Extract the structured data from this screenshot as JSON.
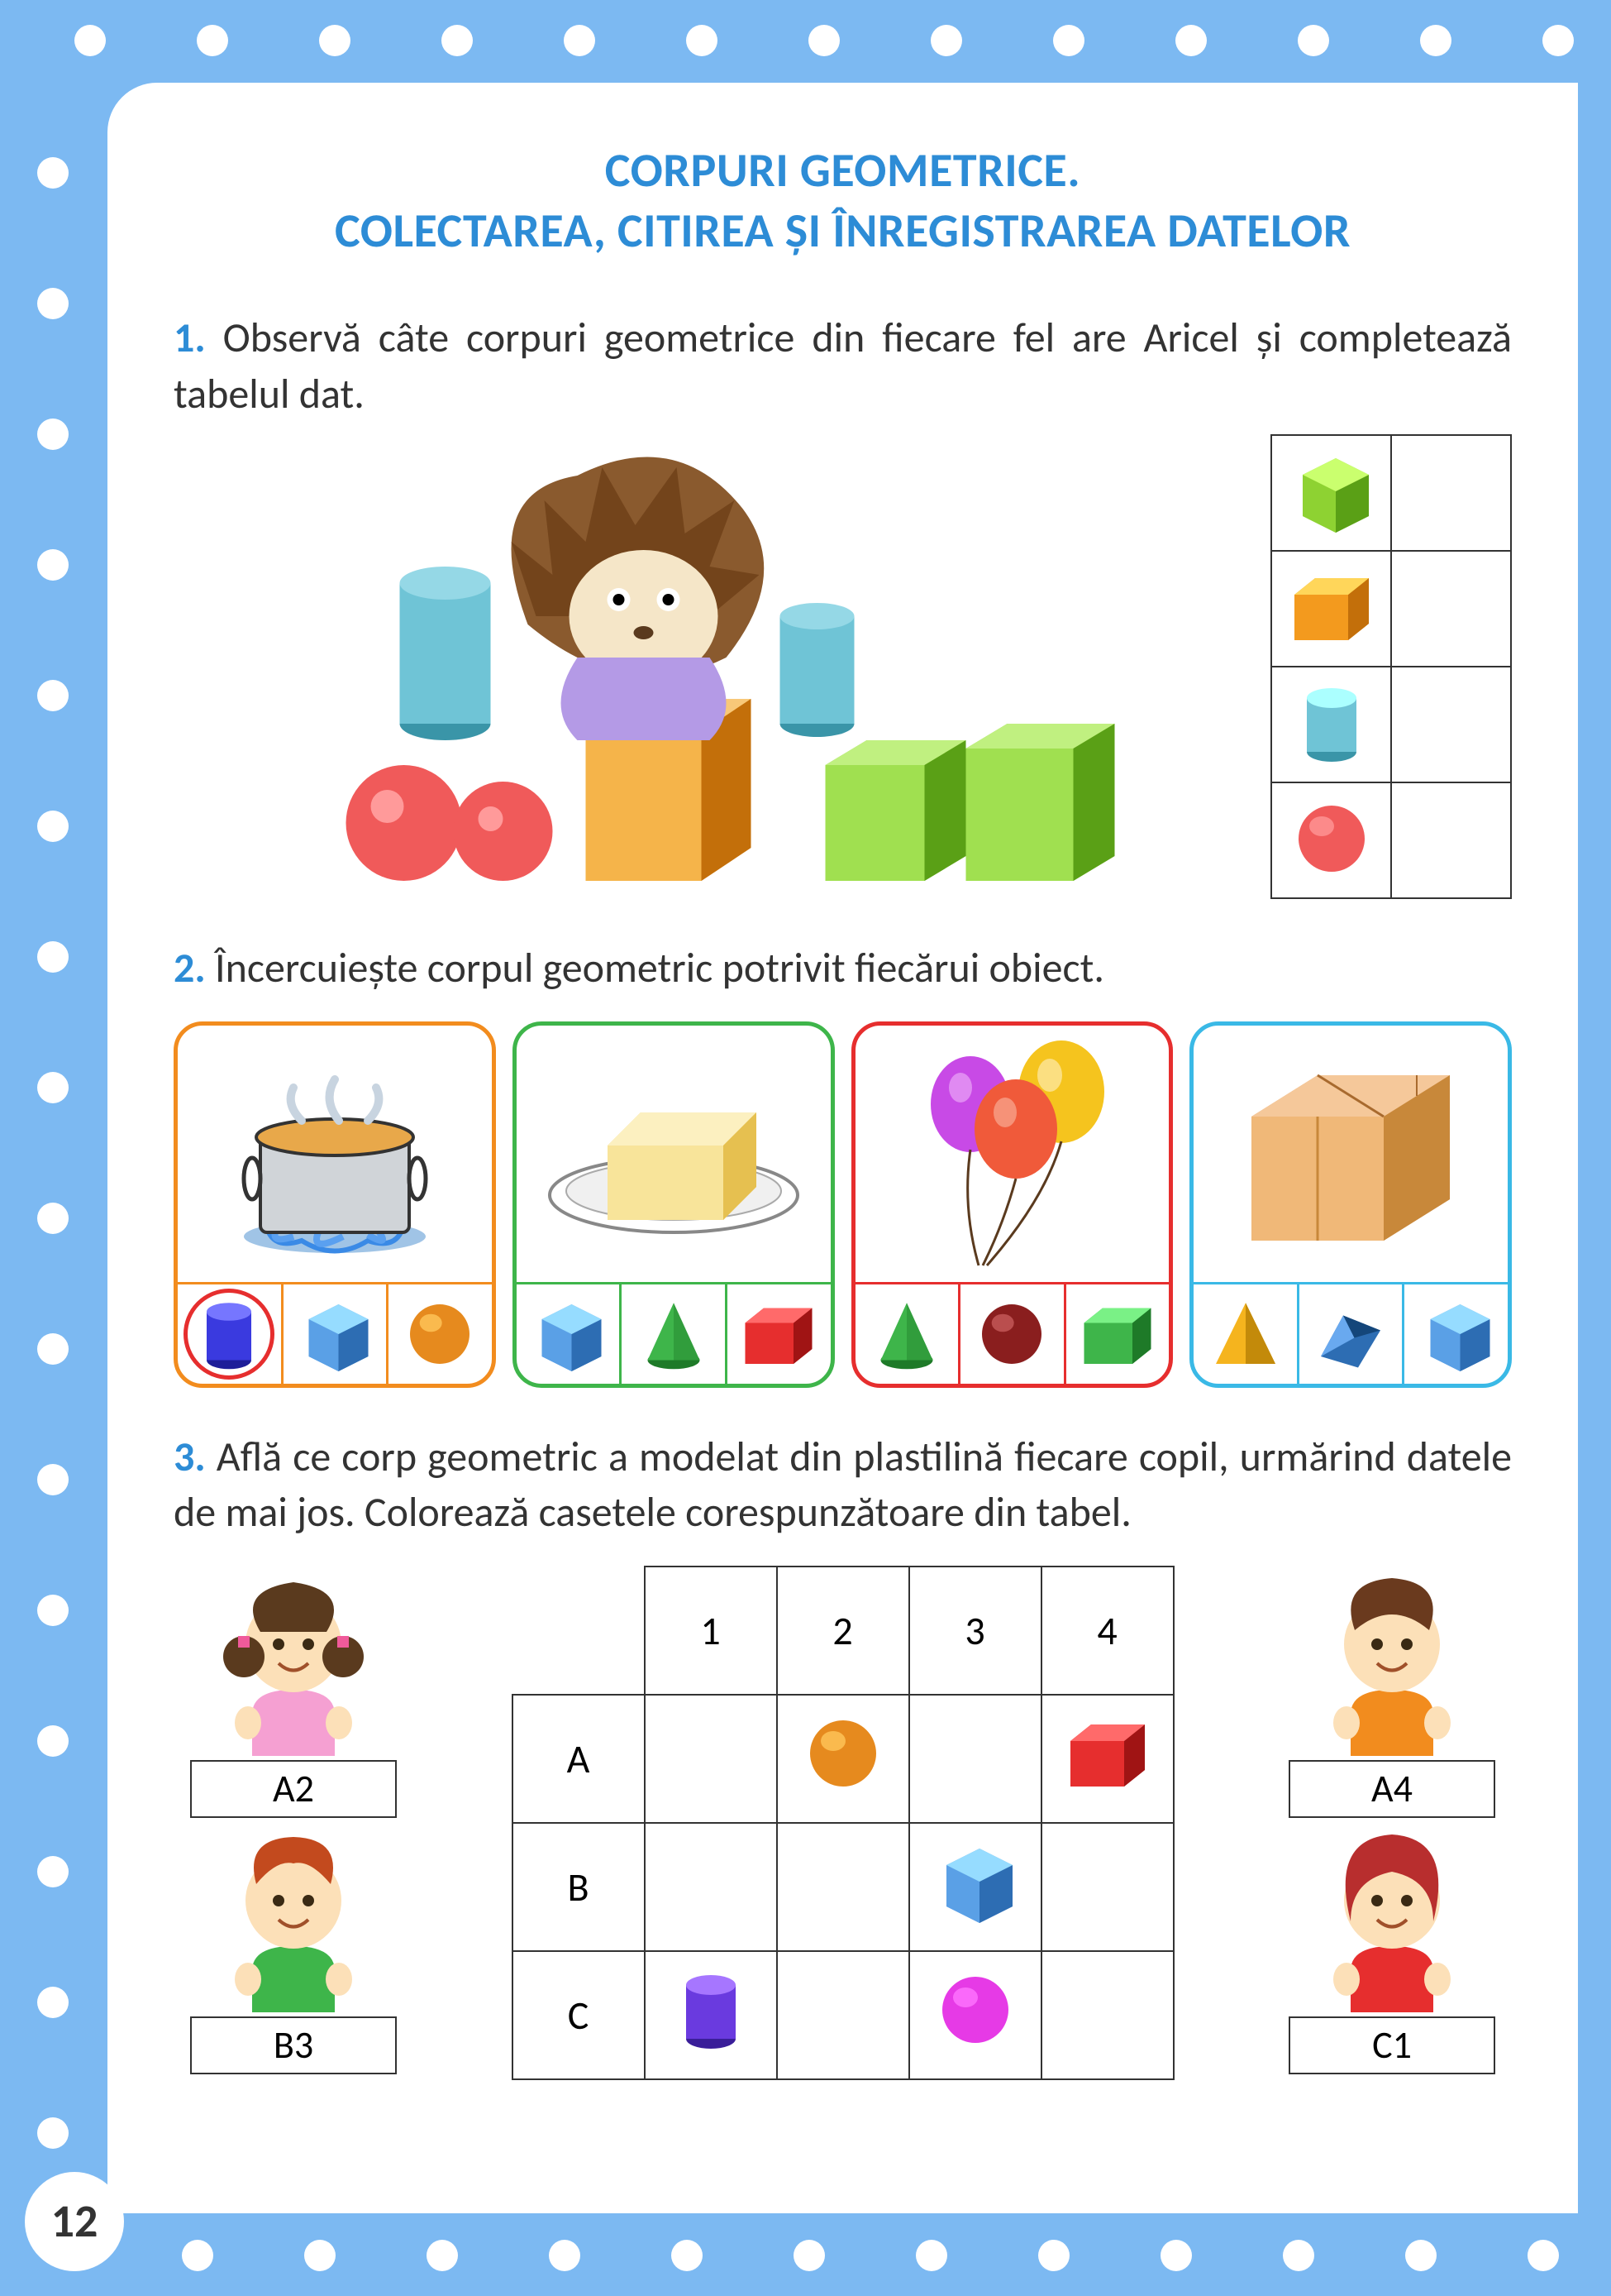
{
  "page_number": "12",
  "title_line1": "CORPURI GEOMETRICE.",
  "title_line2": "COLECTAREA, CITIREA ȘI ÎNREGISTRAREA DATELOR",
  "colors": {
    "border": "#7cb9f2",
    "title": "#2d8cd6",
    "text": "#333333",
    "white": "#ffffff",
    "card1": "#f28c1e",
    "card2": "#3eb54a",
    "card3": "#e62e2e",
    "card4": "#3ab9e6",
    "circle": "#e62e2e"
  },
  "task1": {
    "num": "1.",
    "text": "Observă câte corpuri geometrice din fiecare fel are Aricel și completează tabelul dat.",
    "table_shapes": [
      {
        "type": "cube",
        "color": "#8ed232",
        "dark": "#5aa016"
      },
      {
        "type": "cuboid",
        "color": "#f39a1e",
        "dark": "#c36f0a"
      },
      {
        "type": "cylinder",
        "color": "#6fc4d6",
        "dark": "#3a95a8"
      },
      {
        "type": "sphere",
        "color": "#f05a5a",
        "dark": "#b82e2e"
      }
    ]
  },
  "task2": {
    "num": "2.",
    "text": "Încercuiește corpul geometric potrivit fiecărui obiect.",
    "cards": [
      {
        "border": "#f28c1e",
        "object": "pot",
        "choices": [
          {
            "type": "cylinder",
            "color": "#3a3adf",
            "dark": "#1e1e99",
            "circled": true
          },
          {
            "type": "cube",
            "color": "#5aa0e6",
            "dark": "#2d6db3"
          },
          {
            "type": "sphere",
            "color": "#e68a1e",
            "dark": "#a05a0a"
          }
        ]
      },
      {
        "border": "#3eb54a",
        "object": "butter",
        "choices": [
          {
            "type": "cube",
            "color": "#5aa0e6",
            "dark": "#2d6db3"
          },
          {
            "type": "cone",
            "color": "#3eb54a",
            "dark": "#1e7a28"
          },
          {
            "type": "cuboid",
            "color": "#e62e2e",
            "dark": "#a01414"
          }
        ]
      },
      {
        "border": "#e62e2e",
        "object": "balloons",
        "choices": [
          {
            "type": "cone",
            "color": "#3eb54a",
            "dark": "#1e7a28"
          },
          {
            "type": "sphere",
            "color": "#8a1e1e",
            "dark": "#4a0a0a"
          },
          {
            "type": "cuboid",
            "color": "#3eb54a",
            "dark": "#1e7a28"
          }
        ]
      },
      {
        "border": "#3ab9e6",
        "object": "box",
        "choices": [
          {
            "type": "pyramid",
            "color": "#f5b41e",
            "dark": "#c38a0a"
          },
          {
            "type": "prism",
            "color": "#2d6db3",
            "dark": "#14467a"
          },
          {
            "type": "cube",
            "color": "#5aa0e6",
            "dark": "#2d6db3"
          }
        ]
      }
    ]
  },
  "task3": {
    "num": "3.",
    "text": "Află ce corp geometric a modelat din plastilină fiecare copil, urmărind datele de mai jos. Colorează casetele corespunzătoare din tabel.",
    "cols": [
      "1",
      "2",
      "3",
      "4"
    ],
    "rows": [
      "A",
      "B",
      "C"
    ],
    "cells": {
      "A2": {
        "type": "sphere",
        "color": "#e68a1e",
        "dark": "#a05a0a"
      },
      "A4": {
        "type": "cuboid",
        "color": "#e62e2e",
        "dark": "#a01414"
      },
      "B3": {
        "type": "cube",
        "color": "#5aa0e6",
        "dark": "#2d6db3"
      },
      "C1": {
        "type": "cylinder",
        "color": "#6a3adf",
        "dark": "#3a1e99"
      },
      "C3": {
        "type": "sphere",
        "color": "#e63ae6",
        "dark": "#a014a0"
      }
    },
    "kids_left": [
      {
        "label": "A2",
        "hair": "#5a3a1e",
        "shirt": "#f5a0d2"
      },
      {
        "label": "B3",
        "hair": "#c34a1e",
        "shirt": "#3eb54a"
      }
    ],
    "kids_right": [
      {
        "label": "A4",
        "hair": "#6a3a1e",
        "shirt": "#f28c1e"
      },
      {
        "label": "C1",
        "hair": "#b82e2e",
        "shirt": "#e62e2e"
      }
    ]
  }
}
